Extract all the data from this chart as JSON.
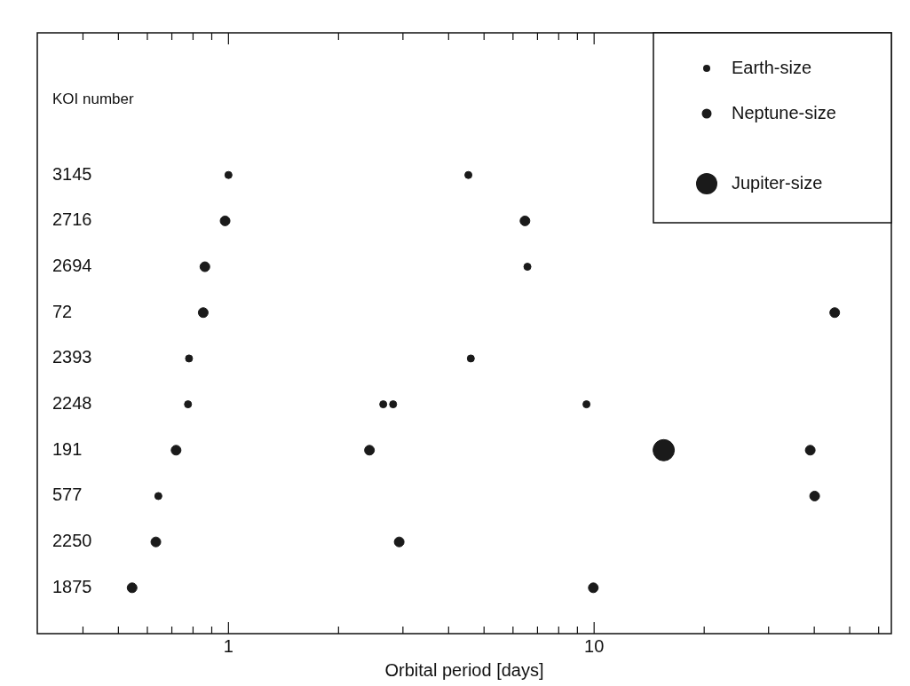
{
  "chart_data": {
    "type": "scatter",
    "orientation": "horizontal",
    "xlabel": "Orbital period [days]",
    "ylabel": "KOI number",
    "categories": [
      "3145",
      "2716",
      "2694",
      "72",
      "2393",
      "2248",
      "191",
      "577",
      "2250",
      "1875"
    ],
    "log": "x",
    "xlim": [
      0.3,
      65
    ],
    "xticks": [
      {
        "value": 0.4,
        "label": null
      },
      {
        "value": 0.5,
        "label": null
      },
      {
        "value": 0.6,
        "label": null
      },
      {
        "value": 0.7,
        "label": null
      },
      {
        "value": 0.8,
        "label": null
      },
      {
        "value": 0.9,
        "label": null
      },
      1,
      {
        "value": 2,
        "label": null
      },
      {
        "value": 3,
        "label": null
      },
      {
        "value": 4,
        "label": null
      },
      {
        "value": 5,
        "label": null
      },
      {
        "value": 6,
        "label": null
      },
      {
        "value": 7,
        "label": null
      },
      {
        "value": 8,
        "label": null
      },
      {
        "value": 9,
        "label": null
      },
      10,
      {
        "value": 20,
        "label": null
      },
      {
        "value": 30,
        "label": null
      },
      {
        "value": 40,
        "label": null
      },
      {
        "value": 50,
        "label": null
      },
      {
        "value": 60,
        "label": null
      }
    ],
    "grid": false,
    "legend": "top right",
    "marker": "circle",
    "series": [
      {
        "name": "Earth-size",
        "color": "#1a1a1a",
        "values": [
          1.0,
          null,
          6.57,
          null,
          0.78,
          0.775,
          null,
          0.643,
          null,
          null
        ]
      },
      {
        "color": "#1a1a1a",
        "values": [
          4.53,
          null,
          null,
          null,
          4.6,
          2.65,
          null,
          null,
          null,
          null
        ]
      },
      {
        "color": "#1a1a1a",
        "values": [
          null,
          null,
          null,
          null,
          null,
          2.82,
          null,
          null,
          null,
          null
        ]
      },
      {
        "color": "#1a1a1a",
        "values": [
          null,
          null,
          null,
          null,
          null,
          9.53,
          null,
          null,
          null,
          null
        ]
      },
      {
        "name": "Neptune-size",
        "color": "#1a1a1a",
        "values": [
          null,
          0.979,
          0.862,
          0.853,
          null,
          null,
          0.719,
          40.1,
          0.633,
          0.545
        ]
      },
      {
        "color": "#1a1a1a",
        "values": [
          null,
          6.47,
          null,
          45.5,
          null,
          null,
          2.43,
          null,
          2.93,
          9.95
        ]
      },
      {
        "color": "#1a1a1a",
        "values": [
          null,
          null,
          null,
          null,
          null,
          null,
          39.0,
          null,
          null,
          null
        ]
      },
      {
        "name": "Jupiter-size",
        "color": "#1a1a1a",
        "values": [
          null,
          null,
          null,
          null,
          null,
          null,
          15.5,
          null,
          null,
          null
        ]
      }
    ]
  }
}
